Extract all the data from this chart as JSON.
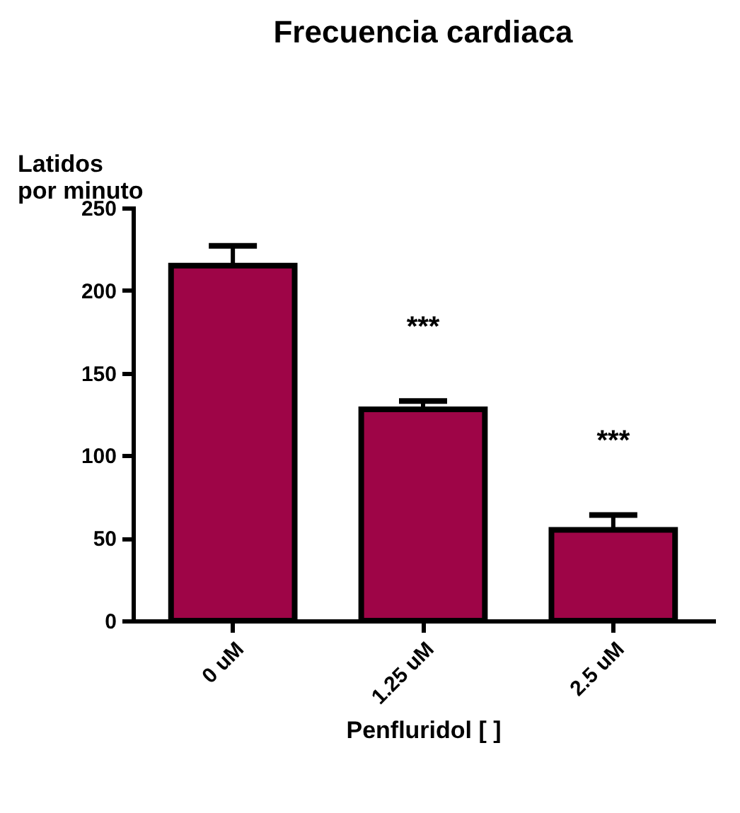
{
  "chart_data": {
    "type": "bar",
    "title": "Frecuencia cardiaca",
    "xlabel": "Penfluridol [ ]",
    "ylabel": "Latidos por minuto",
    "categories": [
      "0 uM",
      "1.25 uM",
      "2.5 uM"
    ],
    "values": [
      215,
      128,
      55
    ],
    "errors": [
      12,
      5,
      9
    ],
    "color": "#9e0547",
    "ylim": [
      0,
      250
    ],
    "yticks": [
      0,
      50,
      100,
      150,
      200,
      250
    ],
    "grid": false,
    "annotations": [
      "***",
      "***"
    ]
  }
}
